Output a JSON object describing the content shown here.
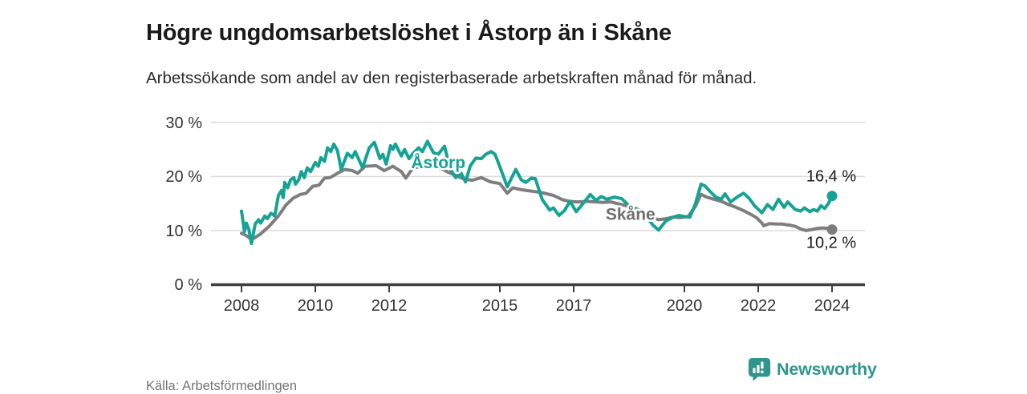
{
  "header": {
    "title": "Högre ungdomsarbetslöshet i Åstorp än i Skåne",
    "subtitle": "Arbetssökande som andel av den registerbaserade arbetskraften månad för månad."
  },
  "footer": {
    "source": "Källa: Arbetsförmedlingen",
    "brand": "Newsworthy",
    "brand_icon": "newsworthy-chart-bubble-icon"
  },
  "colors": {
    "astorp_line": "#16a394",
    "skane_line": "#7e7e7e",
    "axis": "#3f3f3f",
    "grid": "#dcdcdc",
    "text": "#1a1a1a",
    "brand_teal": "#2e968c",
    "source_text": "#757575"
  },
  "chart_data": {
    "type": "line",
    "title": "Högre ungdomsarbetslöshet i Åstorp än i Skåne",
    "subtitle": "Arbetssökande som andel av den registerbaserade arbetskraften månad för månad.",
    "xlabel": "",
    "ylabel": "",
    "unit": "%",
    "xlim": [
      2007.17,
      2024.9
    ],
    "ylim": [
      0,
      31.3
    ],
    "grid": "horizontal",
    "legend": "inline-labels",
    "x_ticks": [
      2008,
      2010,
      2012,
      2015,
      2017,
      2020,
      2022,
      2024
    ],
    "x_tick_labels": [
      "2008",
      "2010",
      "2012",
      "2015",
      "2017",
      "2020",
      "2022",
      "2024"
    ],
    "y_ticks": [
      0,
      10,
      20,
      30
    ],
    "y_tick_labels": [
      "0 %",
      "10 %",
      "20 %",
      "30 %"
    ],
    "series": [
      {
        "name": "Åstorp",
        "color": "#16a394",
        "end_label": "16,4 %",
        "end_value": 16.4,
        "label_pos": {
          "x": 2013.33,
          "y": 22.6
        },
        "points": [
          [
            2008.0,
            13.6
          ],
          [
            2008.08,
            9.8
          ],
          [
            2008.13,
            11.4
          ],
          [
            2008.2,
            10.2
          ],
          [
            2008.27,
            7.6
          ],
          [
            2008.37,
            11.2
          ],
          [
            2008.46,
            12.0
          ],
          [
            2008.52,
            11.4
          ],
          [
            2008.63,
            12.7
          ],
          [
            2008.7,
            12.2
          ],
          [
            2008.8,
            13.2
          ],
          [
            2008.9,
            12.7
          ],
          [
            2009.0,
            16.5
          ],
          [
            2009.08,
            17.4
          ],
          [
            2009.13,
            16.1
          ],
          [
            2009.17,
            18.9
          ],
          [
            2009.25,
            17.9
          ],
          [
            2009.33,
            19.4
          ],
          [
            2009.42,
            19.8
          ],
          [
            2009.46,
            18.6
          ],
          [
            2009.55,
            19.4
          ],
          [
            2009.62,
            20.9
          ],
          [
            2009.7,
            19.8
          ],
          [
            2009.78,
            21.6
          ],
          [
            2009.87,
            20.9
          ],
          [
            2010.0,
            22.6
          ],
          [
            2010.08,
            21.9
          ],
          [
            2010.15,
            23.5
          ],
          [
            2010.25,
            22.8
          ],
          [
            2010.33,
            25.3
          ],
          [
            2010.42,
            24.6
          ],
          [
            2010.5,
            26.0
          ],
          [
            2010.6,
            24.8
          ],
          [
            2010.7,
            21.3
          ],
          [
            2010.87,
            24.3
          ],
          [
            2011.0,
            23.5
          ],
          [
            2011.08,
            24.6
          ],
          [
            2011.28,
            21.6
          ],
          [
            2011.46,
            25.3
          ],
          [
            2011.6,
            26.3
          ],
          [
            2011.75,
            23.3
          ],
          [
            2011.83,
            24.1
          ],
          [
            2011.92,
            22.3
          ],
          [
            2012.04,
            25.7
          ],
          [
            2012.1,
            25.0
          ],
          [
            2012.17,
            26.0
          ],
          [
            2012.33,
            23.8
          ],
          [
            2012.42,
            25.0
          ],
          [
            2012.54,
            23.3
          ],
          [
            2012.65,
            24.3
          ],
          [
            2012.8,
            25.3
          ],
          [
            2012.9,
            24.6
          ],
          [
            2013.04,
            26.5
          ],
          [
            2013.2,
            24.4
          ],
          [
            2013.33,
            24.1
          ],
          [
            2013.5,
            25.6
          ],
          [
            2013.65,
            21.5
          ],
          [
            2013.8,
            19.8
          ],
          [
            2013.95,
            20.6
          ],
          [
            2014.07,
            19.0
          ],
          [
            2014.2,
            22.0
          ],
          [
            2014.35,
            23.4
          ],
          [
            2014.5,
            23.3
          ],
          [
            2014.62,
            24.1
          ],
          [
            2014.76,
            24.6
          ],
          [
            2014.87,
            24.1
          ],
          [
            2015.0,
            21.8
          ],
          [
            2015.2,
            18.1
          ],
          [
            2015.43,
            21.3
          ],
          [
            2015.58,
            19.4
          ],
          [
            2015.7,
            18.9
          ],
          [
            2015.85,
            19.7
          ],
          [
            2015.96,
            19.6
          ],
          [
            2016.15,
            15.7
          ],
          [
            2016.35,
            13.8
          ],
          [
            2016.45,
            14.2
          ],
          [
            2016.6,
            12.8
          ],
          [
            2016.75,
            13.7
          ],
          [
            2016.9,
            15.4
          ],
          [
            2017.07,
            13.5
          ],
          [
            2017.3,
            15.4
          ],
          [
            2017.45,
            16.7
          ],
          [
            2017.6,
            15.6
          ],
          [
            2017.75,
            16.3
          ],
          [
            2017.9,
            15.8
          ],
          [
            2018.1,
            16.2
          ],
          [
            2018.3,
            15.9
          ],
          [
            2018.5,
            14.6
          ],
          [
            2018.7,
            13.9
          ],
          [
            2018.85,
            13.0
          ],
          [
            2019.0,
            12.3
          ],
          [
            2019.15,
            11.0
          ],
          [
            2019.3,
            10.1
          ],
          [
            2019.5,
            11.8
          ],
          [
            2019.7,
            12.5
          ],
          [
            2019.85,
            12.8
          ],
          [
            2020.0,
            12.6
          ],
          [
            2020.15,
            12.5
          ],
          [
            2020.3,
            15.0
          ],
          [
            2020.45,
            18.6
          ],
          [
            2020.55,
            18.3
          ],
          [
            2020.7,
            17.2
          ],
          [
            2020.85,
            16.2
          ],
          [
            2021.0,
            15.8
          ],
          [
            2021.1,
            16.8
          ],
          [
            2021.25,
            15.3
          ],
          [
            2021.45,
            16.3
          ],
          [
            2021.6,
            16.9
          ],
          [
            2021.75,
            16.0
          ],
          [
            2021.9,
            14.6
          ],
          [
            2022.1,
            13.3
          ],
          [
            2022.25,
            14.8
          ],
          [
            2022.4,
            13.9
          ],
          [
            2022.55,
            15.8
          ],
          [
            2022.7,
            14.3
          ],
          [
            2022.8,
            15.3
          ],
          [
            2023.0,
            13.9
          ],
          [
            2023.15,
            13.6
          ],
          [
            2023.25,
            14.2
          ],
          [
            2023.4,
            13.5
          ],
          [
            2023.5,
            13.9
          ],
          [
            2023.6,
            13.6
          ],
          [
            2023.7,
            14.6
          ],
          [
            2023.8,
            14.1
          ],
          [
            2023.9,
            15.0
          ],
          [
            2024.0,
            16.4
          ]
        ]
      },
      {
        "name": "Skåne",
        "color": "#7e7e7e",
        "end_label": "10,2 %",
        "end_value": 10.2,
        "label_pos": {
          "x": 2018.54,
          "y": 13.0
        },
        "points": [
          [
            2008.0,
            9.5
          ],
          [
            2008.15,
            9.0
          ],
          [
            2008.27,
            8.3
          ],
          [
            2008.5,
            9.3
          ],
          [
            2008.75,
            10.8
          ],
          [
            2009.0,
            12.7
          ],
          [
            2009.2,
            14.7
          ],
          [
            2009.4,
            16.0
          ],
          [
            2009.6,
            16.7
          ],
          [
            2009.75,
            16.9
          ],
          [
            2009.93,
            18.2
          ],
          [
            2010.1,
            18.4
          ],
          [
            2010.25,
            19.7
          ],
          [
            2010.4,
            19.8
          ],
          [
            2010.6,
            20.6
          ],
          [
            2010.8,
            21.3
          ],
          [
            2011.0,
            21.1
          ],
          [
            2011.15,
            20.6
          ],
          [
            2011.35,
            21.9
          ],
          [
            2011.65,
            22.0
          ],
          [
            2011.87,
            21.1
          ],
          [
            2012.1,
            21.9
          ],
          [
            2012.33,
            20.9
          ],
          [
            2012.45,
            19.7
          ],
          [
            2012.65,
            21.6
          ],
          [
            2013.0,
            22.0
          ],
          [
            2013.2,
            21.8
          ],
          [
            2013.4,
            21.5
          ],
          [
            2013.6,
            20.8
          ],
          [
            2013.8,
            20.2
          ],
          [
            2014.0,
            19.6
          ],
          [
            2014.25,
            19.3
          ],
          [
            2014.5,
            19.8
          ],
          [
            2014.75,
            19.0
          ],
          [
            2015.0,
            18.7
          ],
          [
            2015.2,
            16.9
          ],
          [
            2015.35,
            17.9
          ],
          [
            2015.55,
            17.6
          ],
          [
            2015.75,
            17.4
          ],
          [
            2015.96,
            17.2
          ],
          [
            2016.15,
            17.0
          ],
          [
            2016.45,
            16.5
          ],
          [
            2016.7,
            15.7
          ],
          [
            2016.9,
            15.4
          ],
          [
            2017.1,
            15.3
          ],
          [
            2017.35,
            15.4
          ],
          [
            2017.6,
            15.3
          ],
          [
            2017.8,
            15.2
          ],
          [
            2018.0,
            15.3
          ],
          [
            2018.3,
            14.8
          ],
          [
            2018.6,
            14.3
          ],
          [
            2018.85,
            13.6
          ],
          [
            2019.1,
            12.6
          ],
          [
            2019.3,
            12.0
          ],
          [
            2019.5,
            12.2
          ],
          [
            2019.7,
            12.5
          ],
          [
            2019.9,
            12.4
          ],
          [
            2020.1,
            12.6
          ],
          [
            2020.3,
            14.5
          ],
          [
            2020.45,
            16.7
          ],
          [
            2020.6,
            16.2
          ],
          [
            2020.8,
            15.8
          ],
          [
            2021.0,
            15.4
          ],
          [
            2021.2,
            14.8
          ],
          [
            2021.4,
            14.3
          ],
          [
            2021.6,
            13.7
          ],
          [
            2021.8,
            13.0
          ],
          [
            2021.95,
            12.4
          ],
          [
            2022.1,
            11.4
          ],
          [
            2022.15,
            10.9
          ],
          [
            2022.3,
            11.3
          ],
          [
            2022.5,
            11.2
          ],
          [
            2022.65,
            11.2
          ],
          [
            2022.85,
            11.0
          ],
          [
            2023.0,
            10.8
          ],
          [
            2023.15,
            10.3
          ],
          [
            2023.3,
            10.0
          ],
          [
            2023.45,
            10.2
          ],
          [
            2023.6,
            10.4
          ],
          [
            2023.75,
            10.5
          ],
          [
            2023.9,
            10.4
          ],
          [
            2024.0,
            10.2
          ]
        ]
      }
    ]
  }
}
